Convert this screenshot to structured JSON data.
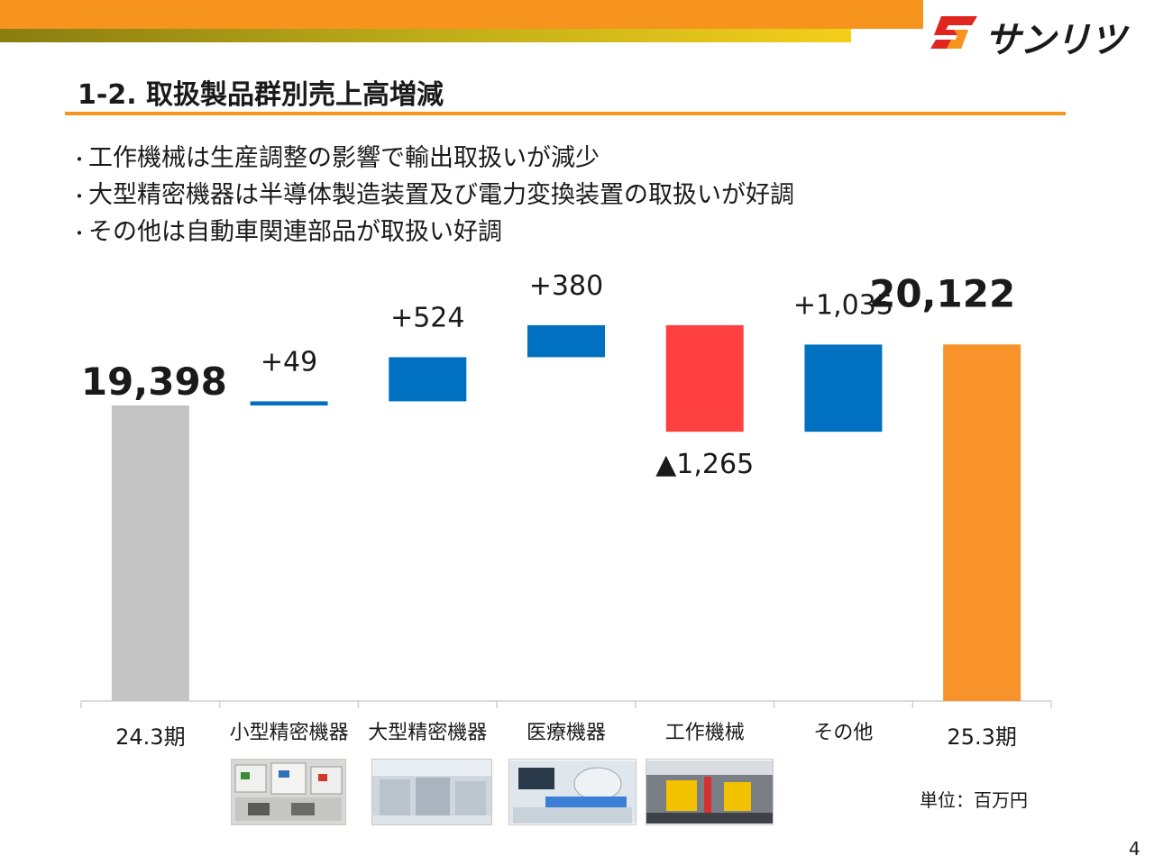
{
  "header": {
    "title": "1-2. 取扱製品群別売上高増減",
    "brand_colors": {
      "orange": "#f7941d",
      "olive": "#b8a818",
      "red": "#e0261f"
    },
    "logo": {
      "text": "サンリツ",
      "icon": "sanritsu-s-logo-icon"
    }
  },
  "bullets": [
    "工作機械は生産調整の影響で輸出取扱いが減少",
    "大型精密機器は半導体製造装置及び電力変換装置の取扱いが好調",
    "その他は自動車関連部品が取扱い好調"
  ],
  "chart_data": {
    "type": "bar",
    "subtype": "waterfall",
    "categories": [
      "24.3期",
      "小型精密機器",
      "大型精密機器",
      "医療機器",
      "工作機械",
      "その他",
      "25.3期"
    ],
    "values": [
      19398,
      49,
      524,
      380,
      -1265,
      1035,
      20122
    ],
    "kinds": [
      "total",
      "delta",
      "delta",
      "delta",
      "delta",
      "delta",
      "total"
    ],
    "data_labels": [
      "19,398",
      "+49",
      "+524",
      "+380",
      "▲1,265",
      "+1,035",
      "20,122"
    ],
    "colors": {
      "start_total": "#c3c3c3",
      "increase": "#0070c0",
      "decrease": "#ff4040",
      "end_total": "#f7932a"
    },
    "unit": "単位：百万円",
    "grid": false,
    "legend": "none"
  },
  "images": [
    {
      "icon": "small-precision-equipment-photo"
    },
    {
      "icon": "large-precision-equipment-photo"
    },
    {
      "icon": "medical-equipment-photo"
    },
    {
      "icon": "machine-tools-photo"
    }
  ],
  "page_number": "4"
}
